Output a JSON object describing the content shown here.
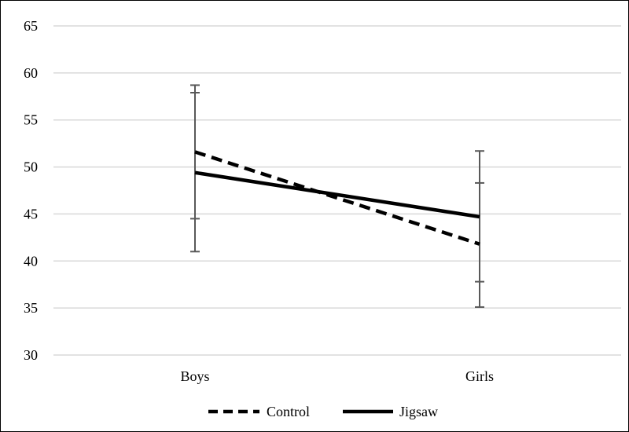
{
  "chart_data": {
    "type": "line",
    "title": "",
    "xlabel": "",
    "ylabel": "",
    "categories": [
      "Boys",
      "Girls"
    ],
    "ylim": [
      30,
      65
    ],
    "yticks": [
      "30",
      "35",
      "40",
      "45",
      "50",
      "55",
      "60",
      "65"
    ],
    "grid": "horizontal",
    "legend_position": "bottom",
    "series": [
      {
        "name": "Control",
        "style": "dashed",
        "color": "#000000",
        "values": [
          51.6,
          41.8
        ],
        "error_low": [
          41.0,
          35.1
        ],
        "error_high": [
          58.7,
          51.7
        ]
      },
      {
        "name": "Jigsaw",
        "style": "solid",
        "color": "#000000",
        "values": [
          49.4,
          44.7
        ],
        "error_low": [
          44.5,
          37.8
        ],
        "error_high": [
          57.9,
          48.3
        ]
      }
    ]
  }
}
